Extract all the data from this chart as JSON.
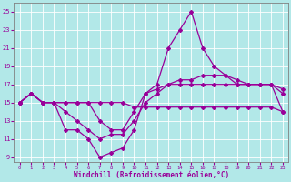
{
  "title": "",
  "xlabel": "Windchill (Refroidissement éolien,°C)",
  "ylabel": "",
  "xlim": [
    -0.5,
    23.5
  ],
  "ylim": [
    8.5,
    26
  ],
  "yticks": [
    9,
    11,
    13,
    15,
    17,
    19,
    21,
    23,
    25
  ],
  "xticks": [
    0,
    1,
    2,
    3,
    4,
    5,
    6,
    7,
    8,
    9,
    10,
    11,
    12,
    13,
    14,
    15,
    16,
    17,
    18,
    19,
    20,
    21,
    22,
    23
  ],
  "background_color": "#b2e8e8",
  "grid_color": "#ffffff",
  "line_color": "#990099",
  "curve1_x": [
    0,
    1,
    2,
    3,
    4,
    5,
    6,
    7,
    8,
    9,
    10,
    11,
    12,
    13,
    14,
    15,
    16,
    17,
    18,
    19,
    20,
    21,
    22,
    23
  ],
  "curve1_y": [
    15,
    16,
    15,
    15,
    15,
    15,
    15,
    15,
    15,
    15,
    14.5,
    14.5,
    14.5,
    14.5,
    14.5,
    14.5,
    14.5,
    14.5,
    14.5,
    14.5,
    14.5,
    14.5,
    14.5,
    14
  ],
  "curve2_x": [
    0,
    1,
    2,
    3,
    4,
    5,
    6,
    7,
    8,
    9,
    10,
    11,
    12,
    13,
    14,
    15,
    16,
    17,
    18,
    19,
    20,
    21,
    22,
    23
  ],
  "curve2_y": [
    15,
    16,
    15,
    15,
    15,
    15,
    15,
    13,
    12,
    12,
    14,
    16,
    16.5,
    17,
    17,
    17,
    17,
    17,
    17,
    17,
    17,
    17,
    17,
    16.5
  ],
  "curve3_x": [
    0,
    1,
    2,
    3,
    4,
    5,
    6,
    7,
    8,
    9,
    10,
    11,
    12,
    13,
    14,
    15,
    16,
    17,
    18,
    19,
    20,
    21,
    22,
    23
  ],
  "curve3_y": [
    15,
    16,
    15,
    15,
    14,
    13,
    12,
    11,
    11.5,
    11.5,
    13,
    15,
    16,
    17,
    17.5,
    17.5,
    18,
    18,
    18,
    17.5,
    17,
    17,
    17,
    16
  ],
  "curve4_x": [
    0,
    1,
    2,
    3,
    4,
    5,
    6,
    7,
    8,
    9,
    10,
    11,
    12,
    13,
    14,
    15,
    16,
    17,
    18,
    19,
    20,
    21,
    22,
    23
  ],
  "curve4_y": [
    15,
    16,
    15,
    15,
    12,
    12,
    11,
    9,
    9.5,
    10,
    12,
    16,
    17,
    21,
    23,
    25,
    21,
    19,
    18,
    17,
    17,
    17,
    17,
    14
  ],
  "marker": "D",
  "marker_size": 2,
  "linewidth": 0.9
}
